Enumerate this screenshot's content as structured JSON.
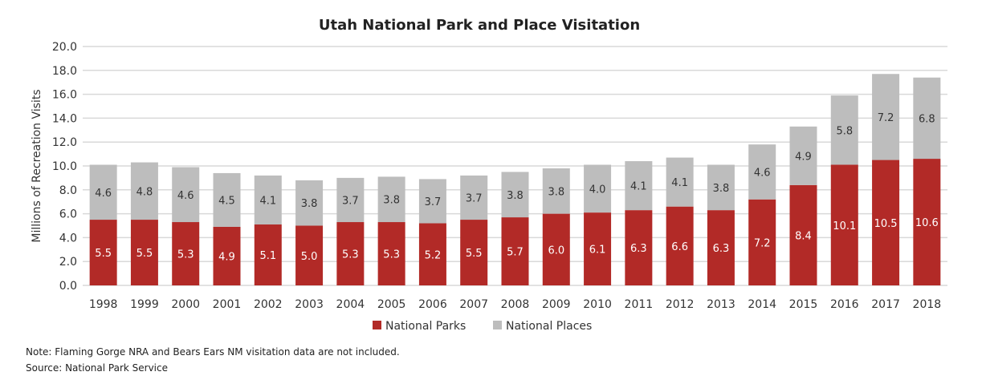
{
  "chart_data": {
    "type": "bar",
    "stacked": true,
    "title": "Utah National Park and Place Visitation",
    "xlabel": "",
    "ylabel": "Millions of Recreation Visits",
    "ylim": [
      0,
      20
    ],
    "yticks": [
      "0.0",
      "2.0",
      "4.0",
      "6.0",
      "8.0",
      "10.0",
      "12.0",
      "14.0",
      "16.0",
      "18.0",
      "20.0"
    ],
    "grid": true,
    "legend_position": "bottom",
    "categories": [
      "1998",
      "1999",
      "2000",
      "2001",
      "2002",
      "2003",
      "2004",
      "2005",
      "2006",
      "2007",
      "2008",
      "2009",
      "2010",
      "2011",
      "2012",
      "2013",
      "2014",
      "2015",
      "2016",
      "2017",
      "2018"
    ],
    "series": [
      {
        "name": "National Parks",
        "color": "#b22a27",
        "values": [
          5.5,
          5.5,
          5.3,
          4.9,
          5.1,
          5.0,
          5.3,
          5.3,
          5.2,
          5.5,
          5.7,
          6.0,
          6.1,
          6.3,
          6.6,
          6.3,
          7.2,
          8.4,
          10.1,
          10.5,
          10.6
        ]
      },
      {
        "name": "National Places",
        "color": "#bdbdbd",
        "values": [
          4.6,
          4.8,
          4.6,
          4.5,
          4.1,
          3.8,
          3.7,
          3.8,
          3.7,
          3.7,
          3.8,
          3.8,
          4.0,
          4.1,
          4.1,
          3.8,
          4.6,
          4.9,
          5.8,
          7.2,
          6.8
        ]
      }
    ]
  },
  "notes": {
    "note": "Note: Flaming Gorge NRA and Bears Ears NM visitation data are not included.",
    "source": "Source: National Park Service"
  }
}
